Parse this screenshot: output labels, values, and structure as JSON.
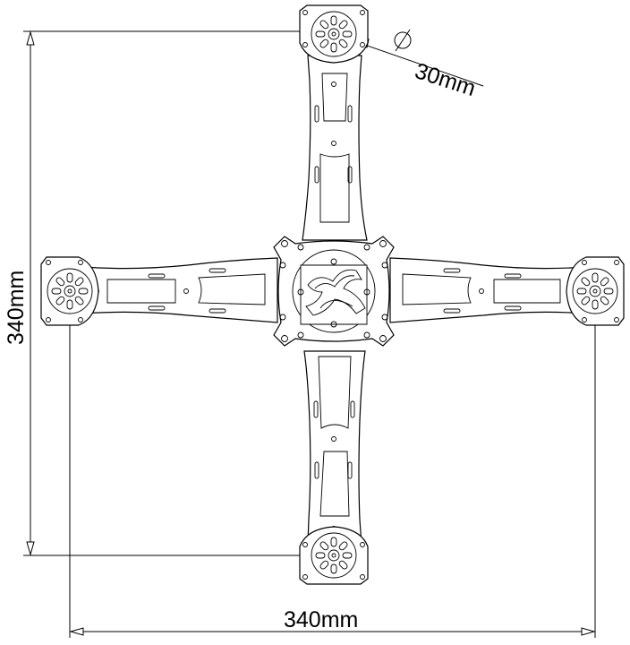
{
  "dimensions": {
    "height_label": "340mm",
    "width_label": "340mm",
    "diameter_label": "30mm",
    "diameter_symbol": "∅"
  },
  "frame": {
    "arm_count": 4,
    "motor_mount_count": 4
  }
}
